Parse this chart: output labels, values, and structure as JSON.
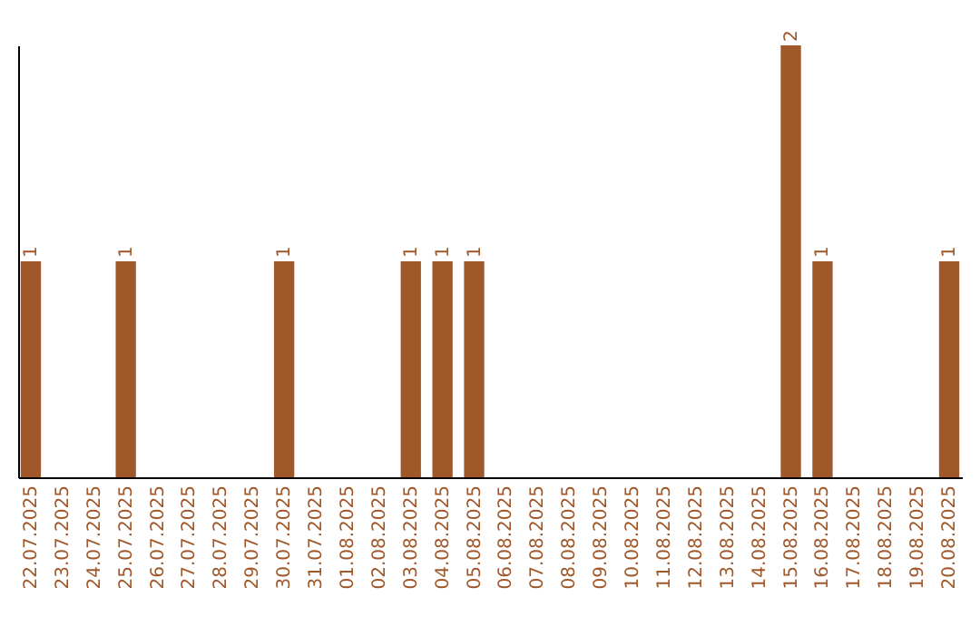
{
  "chart_data": {
    "type": "bar",
    "categories": [
      "22.07.2025",
      "23.07.2025",
      "24.07.2025",
      "25.07.2025",
      "26.07.2025",
      "27.07.2025",
      "28.07.2025",
      "29.07.2025",
      "30.07.2025",
      "31.07.2025",
      "01.08.2025",
      "02.08.2025",
      "03.08.2025",
      "04.08.2025",
      "05.08.2025",
      "06.08.2025",
      "07.08.2025",
      "08.08.2025",
      "09.08.2025",
      "10.08.2025",
      "11.08.2025",
      "12.08.2025",
      "13.08.2025",
      "14.08.2025",
      "15.08.2025",
      "16.08.2025",
      "17.08.2025",
      "18.08.2025",
      "19.08.2025",
      "20.08.2025"
    ],
    "values": [
      1,
      0,
      0,
      1,
      0,
      0,
      0,
      0,
      1,
      0,
      0,
      0,
      1,
      1,
      1,
      0,
      0,
      0,
      0,
      0,
      0,
      0,
      0,
      0,
      2,
      1,
      0,
      0,
      0,
      1
    ],
    "value_labels": [
      "1",
      null,
      null,
      "1",
      null,
      null,
      null,
      null,
      "1",
      null,
      null,
      null,
      "1",
      "1",
      "1",
      null,
      null,
      null,
      null,
      null,
      null,
      null,
      null,
      null,
      "2",
      "1",
      null,
      null,
      null,
      "1"
    ],
    "color": "#a0582a",
    "grid": false,
    "tick_labels": "x"
  }
}
